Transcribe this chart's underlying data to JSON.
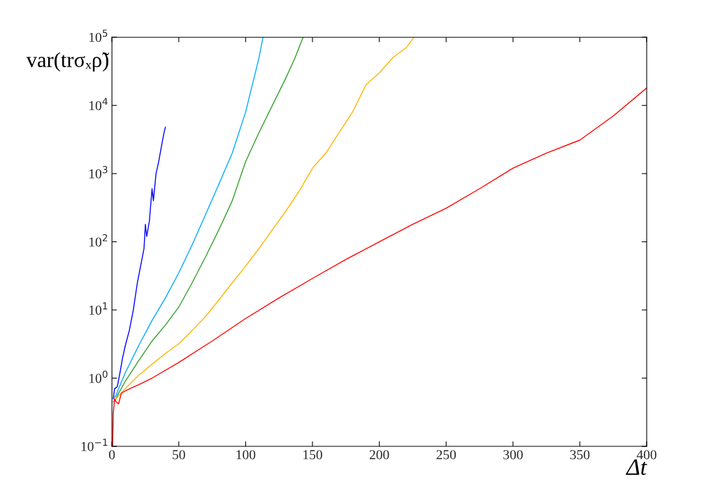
{
  "chart_data": {
    "type": "line",
    "xlabel": "Δt",
    "ylabel": "var(trσₓρ̃)",
    "log": "y",
    "grid": false,
    "legend": false,
    "line_style": "solid",
    "marker": "none",
    "xlim": [
      0,
      400
    ],
    "xticks": [
      0,
      50,
      100,
      150,
      200,
      250,
      300,
      350,
      400
    ],
    "ylim": [
      0.1,
      100000
    ],
    "yticks": [
      {
        "value": 0.1,
        "label": "10$^{−1}$"
      },
      {
        "value": 1,
        "label": "10$^{0}$"
      },
      {
        "value": 10,
        "label": "10$^{1}$"
      },
      {
        "value": 100,
        "label": "10$^{2}$"
      },
      {
        "value": 1000,
        "label": "10$^{3}$"
      },
      {
        "value": 10000,
        "label": "10$^{4}$"
      },
      {
        "value": 100000,
        "label": "10$^{5}$"
      }
    ],
    "series": [
      {
        "color": "#0000ff",
        "x": [
          1,
          2,
          4,
          6,
          8,
          10,
          13,
          16,
          19,
          22,
          24,
          25,
          26,
          28,
          30,
          31,
          33,
          35,
          37,
          39,
          40
        ],
        "values": [
          0.5,
          0.7,
          0.75,
          1.2,
          2,
          3,
          5,
          10,
          25,
          50,
          80,
          180,
          120,
          200,
          600,
          400,
          1000,
          1500,
          2500,
          4000,
          4800
        ]
      },
      {
        "color": "#00aaff",
        "x": [
          1,
          3,
          5,
          10,
          20,
          30,
          40,
          50,
          60,
          70,
          80,
          90,
          100,
          105,
          110,
          113
        ],
        "values": [
          0.5,
          0.55,
          0.7,
          1.2,
          3,
          7,
          15,
          35,
          90,
          250,
          700,
          2000,
          8000,
          20000,
          50000,
          100000
        ]
      },
      {
        "color": "#33a02c",
        "x": [
          1,
          3,
          5,
          10,
          20,
          30,
          40,
          50,
          60,
          70,
          80,
          90,
          100,
          110,
          120,
          130,
          137,
          143
        ],
        "values": [
          0.45,
          0.5,
          0.6,
          0.9,
          1.8,
          3.5,
          6,
          11,
          25,
          60,
          150,
          400,
          1500,
          4000,
          10000,
          25000,
          50000,
          100000
        ]
      },
      {
        "color": "#ffb400",
        "x": [
          1,
          3,
          5,
          10,
          20,
          30,
          40,
          50,
          60,
          70,
          80,
          90,
          100,
          110,
          120,
          130,
          140,
          150,
          160,
          170,
          180,
          190,
          200,
          210,
          220,
          226
        ],
        "values": [
          0.45,
          0.5,
          0.55,
          0.7,
          1.1,
          1.6,
          2.3,
          3.2,
          5,
          8,
          14,
          25,
          44,
          80,
          150,
          280,
          550,
          1200,
          2000,
          4000,
          8000,
          20000,
          30000,
          50000,
          70000,
          100000
        ]
      },
      {
        "color": "#ff0000",
        "x": [
          0.5,
          1,
          2,
          3,
          5,
          7,
          10,
          20,
          30,
          50,
          75,
          100,
          125,
          150,
          175,
          200,
          225,
          250,
          275,
          300,
          325,
          350,
          375,
          400
        ],
        "values": [
          0.1,
          0.3,
          0.5,
          0.45,
          0.42,
          0.6,
          0.65,
          0.8,
          1,
          1.7,
          3.5,
          7.5,
          15,
          29,
          55,
          100,
          180,
          310,
          600,
          1200,
          2000,
          3100,
          7000,
          18000
        ]
      }
    ]
  }
}
